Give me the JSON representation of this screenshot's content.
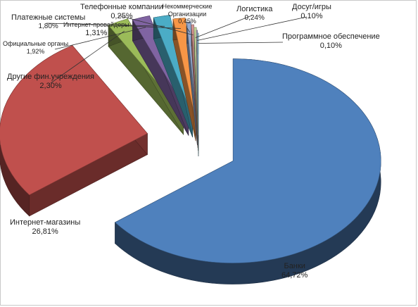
{
  "chart_data": {
    "type": "pie",
    "style": "3d-exploded",
    "slices": [
      {
        "label": "Банки",
        "value": 64.72,
        "display": "64,72%",
        "color": "#4f81bd"
      },
      {
        "label": "Интернет-магазины",
        "value": 26.81,
        "display": "26,81%",
        "color": "#c0504d"
      },
      {
        "label": "Другие фин.учреждения",
        "value": 2.3,
        "display": "2,30%",
        "color": "#9bbb59"
      },
      {
        "label": "Официальные органы",
        "value": 1.92,
        "display": "1,92%",
        "color": "#8064a2"
      },
      {
        "label": "Платежные системы",
        "value": 1.8,
        "display": "1,80%",
        "color": "#4bacc6"
      },
      {
        "label": "Интернет-провайдеры",
        "value": 1.31,
        "display": "1,31%",
        "color": "#f79646"
      },
      {
        "label": "Некоммерческие Организации",
        "value": 0.45,
        "display": "0,45%",
        "color": "#92a9cf"
      },
      {
        "label": "Телефонные компании",
        "value": 0.25,
        "display": "0,25%",
        "color": "#d99694"
      },
      {
        "label": "Логистика",
        "value": 0.24,
        "display": "0,24%",
        "color": "#c3d69b"
      },
      {
        "label": "Досуг/игры",
        "value": 0.1,
        "display": "0,10%",
        "color": "#b3a2c7"
      },
      {
        "label": "Программное обеспечение",
        "value": 0.1,
        "display": "0,10%",
        "color": "#93cddd"
      }
    ],
    "title": "",
    "legend": "none"
  }
}
